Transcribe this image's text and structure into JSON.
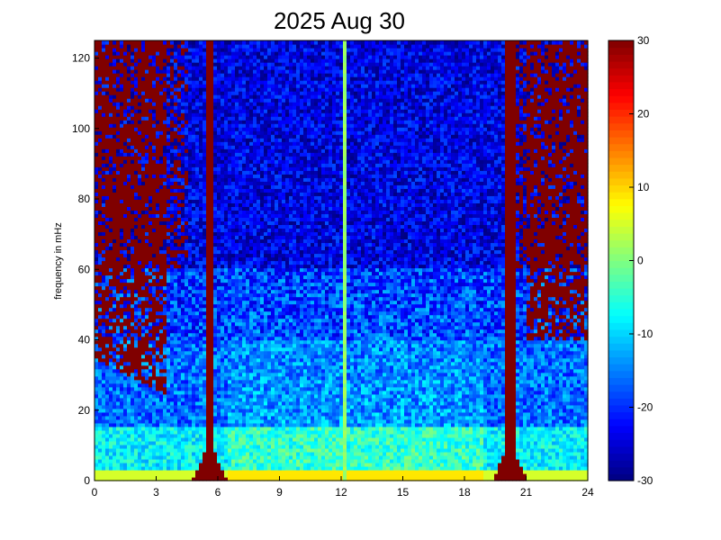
{
  "chart_data": {
    "type": "heatmap",
    "title": "2025 Aug 30",
    "xlabel": "",
    "ylabel": "frequency in mHz",
    "xlim": [
      0,
      24
    ],
    "ylim": [
      0,
      125
    ],
    "x_ticks": [
      "0",
      "3",
      "6",
      "9",
      "12",
      "15",
      "18",
      "21",
      "24"
    ],
    "y_ticks": [
      "0",
      "20",
      "40",
      "60",
      "80",
      "100",
      "120"
    ],
    "colorbar": {
      "range": [
        -30,
        30
      ],
      "ticks": [
        "-30",
        "-20",
        "-10",
        "0",
        "10",
        "20",
        "30"
      ],
      "colormap": "jet"
    },
    "description_features": {
      "vertical_bands_saturated_x": [
        5.6,
        20.2
      ],
      "thin_line_x": 12.1,
      "low_freq_energy_band_mhz": [
        0,
        15
      ]
    },
    "colors": {
      "low": "#00008f",
      "mid": "#7fff7f",
      "high": "#800000"
    }
  }
}
